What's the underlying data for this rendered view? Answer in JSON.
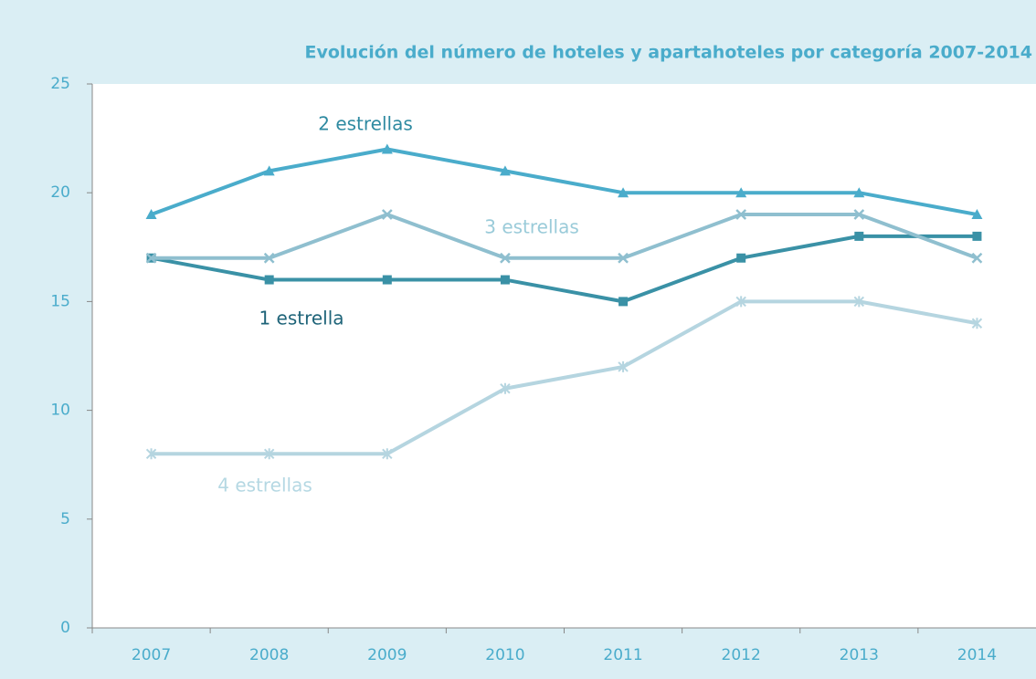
{
  "chart_data": {
    "type": "line",
    "title": "Evolución del número de hoteles y apartahoteles por categoría 2007-2014",
    "categories": [
      "2007",
      "2008",
      "2009",
      "2010",
      "2011",
      "2012",
      "2013",
      "2014"
    ],
    "series": [
      {
        "name": "1 estrella",
        "color": "#3a91a6",
        "label_color": "#1f6479",
        "marker": "square",
        "values": [
          17,
          16,
          16,
          16,
          15,
          17,
          18,
          18
        ]
      },
      {
        "name": "2 estrellas",
        "color": "#4aaccb",
        "label_color": "#2e8aa1",
        "marker": "triangle",
        "values": [
          19,
          21,
          22,
          21,
          20,
          20,
          20,
          19
        ]
      },
      {
        "name": "3 estrellas",
        "color": "#8fbfcf",
        "label_color": "#9acbd9",
        "marker": "x",
        "values": [
          17,
          17,
          19,
          17,
          17,
          19,
          19,
          17
        ]
      },
      {
        "name": "4 estrellas",
        "color": "#b5d5e0",
        "label_color": "#b5d8e3",
        "marker": "asterisk",
        "values": [
          8,
          8,
          8,
          11,
          12,
          15,
          15,
          14
        ]
      }
    ],
    "ylim": [
      0,
      25
    ],
    "yticks": [
      0,
      5,
      10,
      15,
      20,
      25
    ],
    "grid": false
  }
}
